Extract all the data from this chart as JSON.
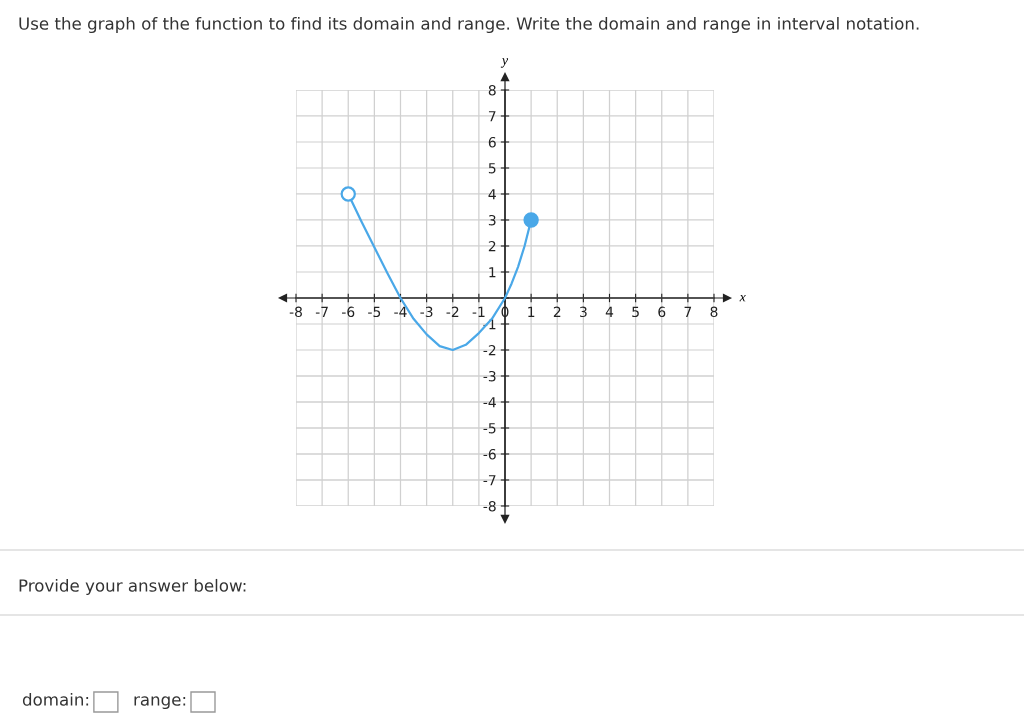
{
  "chart_data": {
    "type": "line",
    "title": "Use the graph of the function to find its domain and range. Write the domain and range in interval notation.",
    "xlabel": "x",
    "ylabel": "y",
    "series": [
      {
        "color": "#4aa8e8",
        "x": [
          -6,
          -5.5,
          -5,
          -4.5,
          -4,
          -3.5,
          -3,
          -2.5,
          -2,
          -1.5,
          -1,
          -0.5,
          0,
          0.25,
          0.5,
          0.75,
          1
        ],
        "values": [
          4,
          2.95,
          1.95,
          0.95,
          0,
          -0.8,
          -1.4,
          -1.85,
          -2,
          -1.8,
          -1.35,
          -0.8,
          0,
          0.55,
          1.2,
          2,
          3
        ]
      },
      {
        "type": "scatter",
        "colors": [
          "#ffffff",
          "#4aa8e8"
        ],
        "marker": "circle",
        "x": [
          -6,
          1
        ],
        "values": [
          4,
          3
        ]
      }
    ],
    "xlim": [
      -8,
      8
    ],
    "ylim": [
      -8,
      8
    ],
    "xticks": [
      -8,
      -7,
      -6,
      -5,
      -4,
      -3,
      -2,
      -1,
      0,
      1,
      2,
      3,
      4,
      5,
      6,
      7,
      8
    ],
    "yticks": [
      -8,
      -7,
      -6,
      -5,
      -4,
      -3,
      -2,
      -1,
      {
        "value": 0,
        "label": null
      },
      1,
      2,
      3,
      4,
      5,
      6,
      7,
      8
    ],
    "grid": true,
    "annotations": [
      "Provide your answer below:",
      "domain:",
      "range:"
    ]
  }
}
